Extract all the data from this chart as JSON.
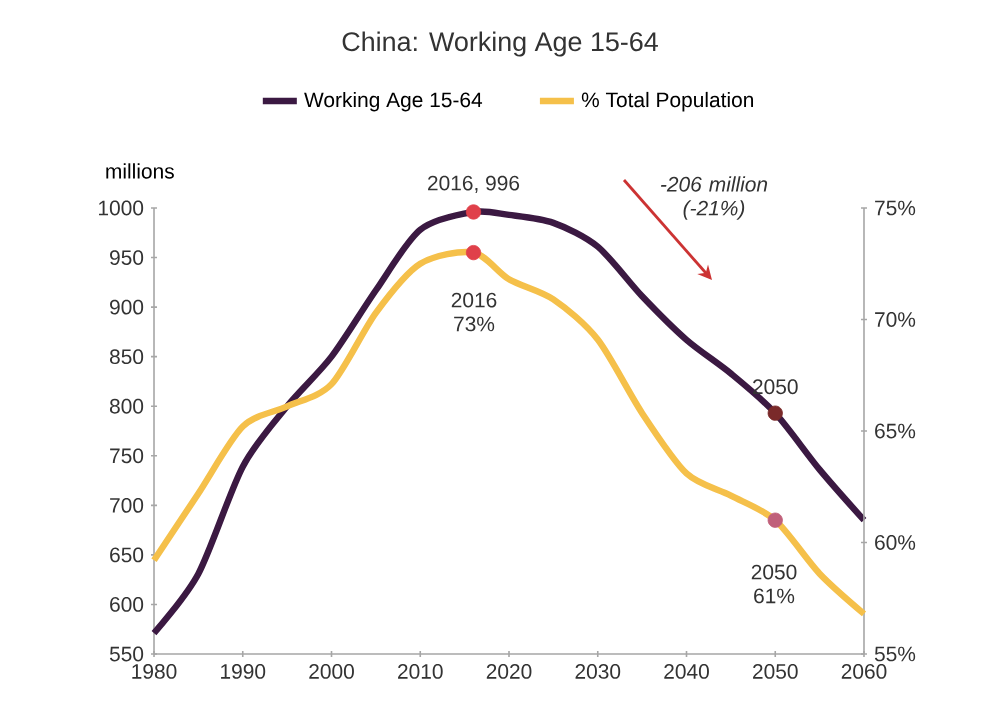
{
  "chart_data": {
    "type": "line",
    "title": "China: Working Age 15-64",
    "ylabel": "millions",
    "annotations": [
      "-206 million (-21%)",
      {
        "text": "2016, 996",
        "x": 2016,
        "y": 996
      },
      {
        "text": "2050",
        "x": 2050,
        "y": 793
      },
      "2016 73%",
      "2050 61%"
    ],
    "xlim": [
      1980,
      2060
    ],
    "xticks": [
      1980,
      1990,
      2000,
      2010,
      2020,
      2030,
      2040,
      2050,
      2060
    ],
    "ylim": [
      550,
      1000
    ],
    "yticks": [
      550,
      600,
      650,
      700,
      750,
      800,
      850,
      900,
      950,
      1000
    ],
    "y2lim": [
      55,
      75
    ],
    "y2ticks": [
      {
        "value": 55,
        "label": "55%"
      },
      {
        "value": 60,
        "label": "60%"
      },
      {
        "value": 65,
        "label": "65%"
      },
      {
        "value": 70,
        "label": "70%"
      },
      {
        "value": 75,
        "label": "75%"
      }
    ],
    "legend": "top",
    "series": [
      {
        "name": "Working Age 15-64",
        "color": "#3b1942",
        "x": [
          1980,
          1985,
          1990,
          1995,
          2000,
          2005,
          2010,
          2016,
          2020,
          2025,
          2030,
          2035,
          2040,
          2045,
          2050,
          2055,
          2060
        ],
        "values": [
          571,
          631,
          739,
          800,
          850,
          917,
          978,
          996,
          993,
          985,
          961,
          911,
          867,
          833,
          793,
          736,
          685
        ]
      },
      {
        "name": "% Total Population",
        "color": "#f5c04a",
        "axis": "y2",
        "x": [
          1980,
          1985,
          1990,
          1995,
          2000,
          2005,
          2010,
          2016,
          2020,
          2025,
          2030,
          2035,
          2040,
          2045,
          2050,
          2055,
          2060
        ],
        "values": [
          59.2,
          62.2,
          65.2,
          66.1,
          67.1,
          70.3,
          72.5,
          73,
          71.8,
          70.9,
          69.1,
          65.8,
          63.1,
          62.1,
          61,
          58.6,
          56.8
        ]
      },
      {
        "type": "scatter",
        "x": [
          2016,
          2050
        ],
        "values": [
          996,
          793
        ],
        "colors": [
          "#e0404a",
          "#7a2a2a"
        ]
      },
      {
        "type": "scatter",
        "axis": "y2",
        "x": [
          2016,
          2050
        ],
        "values": [
          73,
          61
        ],
        "colors": [
          "#e0404a",
          "#c0607a"
        ]
      }
    ]
  }
}
